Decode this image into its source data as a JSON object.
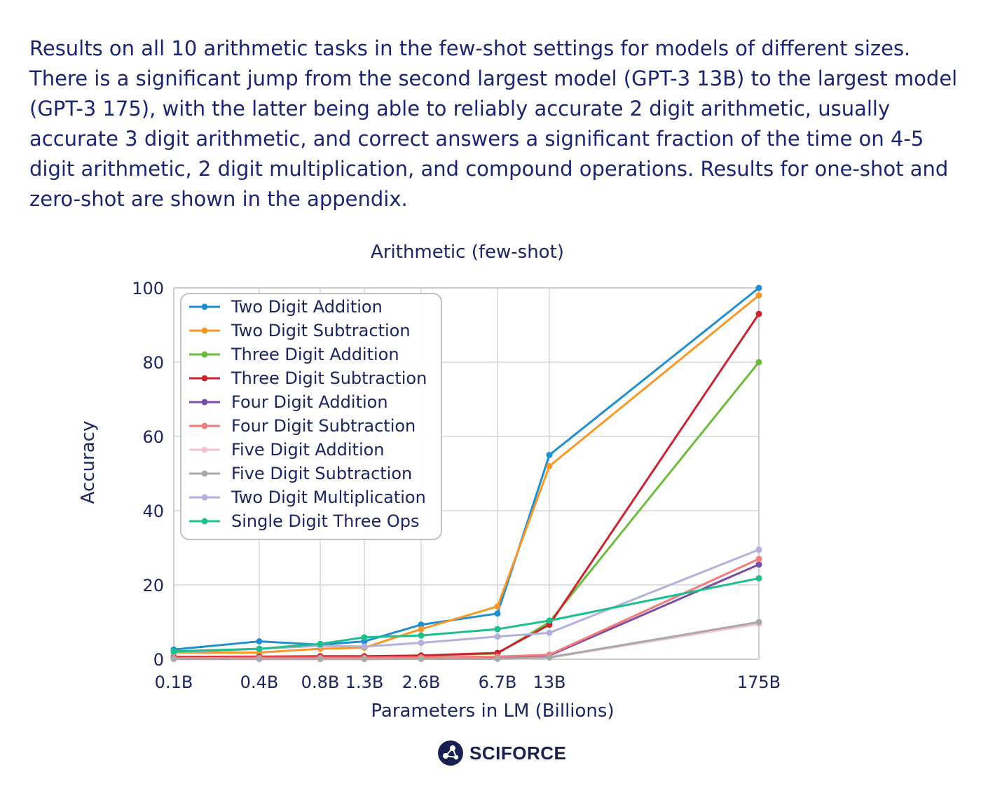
{
  "caption": "Results on all 10 arithmetic tasks in the few-shot settings for models of different sizes. There is a significant jump from the second largest model (GPT-3 13B) to the largest model (GPT-3 175), with the latter being able to reliably accurate 2 digit arithmetic, usually accurate 3 digit arithmetic, and correct answers a significant fraction of the time on 4-5 digit arithmetic, 2 digit multiplication, and compound operations. Results for one-shot and zero-shot are shown in the appendix.",
  "brand": {
    "name": "SCIFORCE",
    "icon": "sciforce-logo-icon"
  },
  "chart_data": {
    "type": "line",
    "title": "Arithmetic (few-shot)",
    "xlabel": "Parameters in LM (Billions)",
    "ylabel": "Accuracy",
    "x": [
      "0.1B",
      "0.4B",
      "0.8B",
      "1.3B",
      "2.6B",
      "6.7B",
      "13B",
      "175B"
    ],
    "ylim": [
      0,
      100
    ],
    "yticks": [
      0,
      20,
      40,
      60,
      80,
      100
    ],
    "grid": true,
    "legend": "top-left",
    "series": [
      {
        "name": "Two Digit Addition",
        "color": "#1f8fce",
        "values": [
          2.6,
          4.8,
          3.9,
          4.8,
          9.3,
          12.3,
          55.0,
          100.0
        ]
      },
      {
        "name": "Two Digit Subtraction",
        "color": "#f7982a",
        "values": [
          1.8,
          1.8,
          2.8,
          3.1,
          8.1,
          14.2,
          52.0,
          98.0
        ]
      },
      {
        "name": "Three Digit Addition",
        "color": "#6dbb3c",
        "values": [
          0.5,
          0.5,
          0.6,
          0.7,
          1.0,
          1.5,
          10.0,
          80.0
        ]
      },
      {
        "name": "Three Digit Subtraction",
        "color": "#c9252e",
        "values": [
          0.6,
          0.7,
          0.8,
          0.8,
          1.0,
          1.7,
          9.3,
          93.0
        ]
      },
      {
        "name": "Four Digit Addition",
        "color": "#7a4ea6",
        "values": [
          0.1,
          0.1,
          0.2,
          0.2,
          0.3,
          0.4,
          1.0,
          25.5
        ]
      },
      {
        "name": "Four Digit Subtraction",
        "color": "#f47c7c",
        "values": [
          0.3,
          0.4,
          0.4,
          0.4,
          0.5,
          0.7,
          1.2,
          27.0
        ]
      },
      {
        "name": "Five Digit Addition",
        "color": "#f6c3d4",
        "values": [
          0.0,
          0.0,
          0.0,
          0.0,
          0.1,
          0.1,
          0.4,
          9.5
        ]
      },
      {
        "name": "Five Digit Subtraction",
        "color": "#a9a9a9",
        "values": [
          0.1,
          0.1,
          0.1,
          0.1,
          0.1,
          0.1,
          0.5,
          10.0
        ]
      },
      {
        "name": "Two Digit Multiplication",
        "color": "#b3b0dc",
        "values": [
          1.9,
          2.8,
          3.6,
          3.4,
          4.4,
          6.1,
          7.1,
          29.5
        ]
      },
      {
        "name": "Single Digit Three Ops",
        "color": "#1dbf8c",
        "values": [
          2.1,
          2.8,
          4.1,
          5.9,
          6.4,
          8.1,
          10.4,
          21.8
        ]
      }
    ]
  }
}
